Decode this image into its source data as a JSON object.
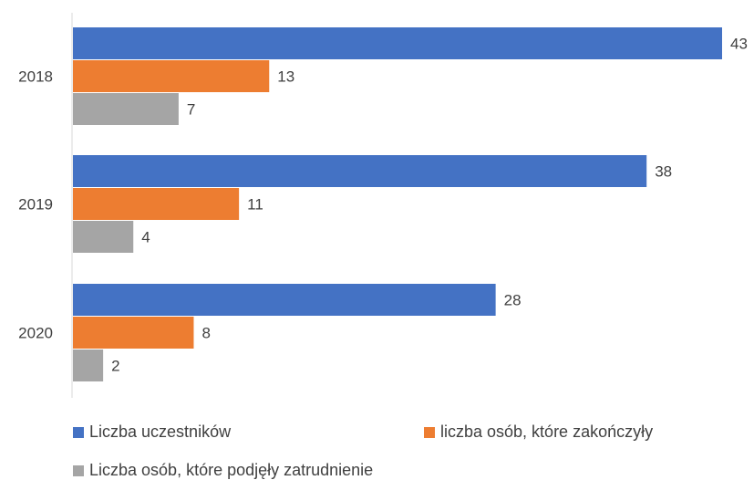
{
  "chart_data": {
    "type": "bar",
    "orientation": "horizontal",
    "categories": [
      "2018",
      "2019",
      "2020"
    ],
    "series": [
      {
        "name": "Liczba uczestników",
        "values": [
          43,
          38,
          28
        ],
        "color": "#4472C4"
      },
      {
        "name": "liczba osób, które zakończyły",
        "values": [
          13,
          11,
          8
        ],
        "color": "#ED7D31"
      },
      {
        "name": "Liczba osób, które podjęły zatrudnienie",
        "values": [
          7,
          4,
          2
        ],
        "color": "#A5A5A5"
      }
    ],
    "title": "",
    "xlabel": "",
    "ylabel": "",
    "xlim": [
      0,
      43
    ],
    "grid": false,
    "data_labels": true,
    "legend_position": "bottom"
  }
}
